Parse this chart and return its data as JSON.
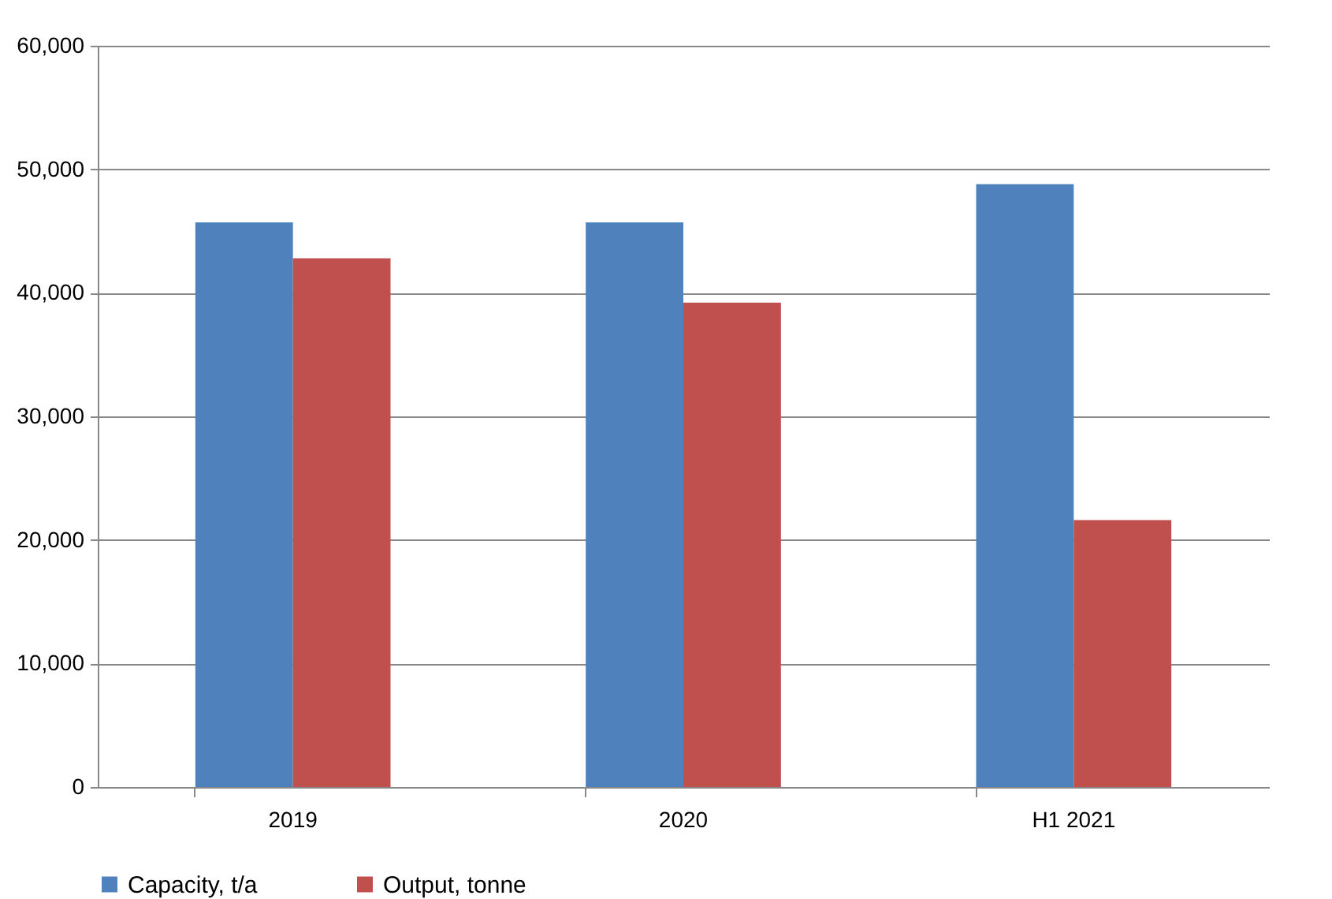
{
  "chart_data": {
    "type": "bar",
    "categories": [
      "2019",
      "2020",
      "H1 2021"
    ],
    "series": [
      {
        "name": "Capacity, t/a",
        "color": "#4f81bd",
        "values": [
          45700,
          45700,
          48800
        ]
      },
      {
        "name": "Output, tonne",
        "color": "#c0504d",
        "values": [
          42800,
          39200,
          21600
        ]
      }
    ],
    "ylim": [
      0,
      60000
    ],
    "yticks": [
      0,
      {
        "value": 10000,
        "label": "10,000"
      },
      {
        "value": 20000,
        "label": "20,000"
      },
      {
        "value": 30000,
        "label": "30,000"
      },
      {
        "value": 40000,
        "label": "40,000"
      },
      {
        "value": 50000,
        "label": "50,000"
      },
      {
        "value": 60000,
        "label": "60,000"
      }
    ],
    "grid": "y",
    "legend": "bottom"
  }
}
